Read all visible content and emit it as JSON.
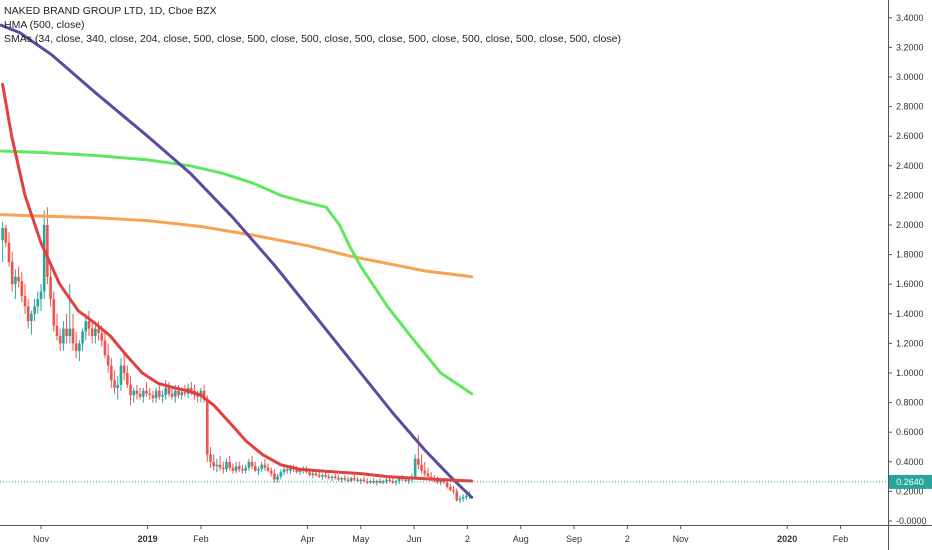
{
  "legend": {
    "title": "NAKED BRAND GROUP LTD, 1D, Cboe BZX",
    "hma": "HMA (500, close)",
    "smas": "SMAs (34, close, 340, close, 204, close, 500, close, 500, close, 500, close, 500, close, 500, close, 500, close, 500, close, 500, close)"
  },
  "price_label": "0.2640",
  "colors": {
    "up": "#26a69a",
    "down": "#ef5350",
    "sma34": "#e04040",
    "hma": "#5b4b9e",
    "sma_green": "#5ee85e",
    "sma_orange": "#f7a353",
    "price_line": "#26a69a"
  },
  "chart_data": {
    "type": "line",
    "title": "NAKED BRAND GROUP LTD, 1D, Cboe BZX",
    "xlabel": "",
    "ylabel": "",
    "ylim": [
      -0.05,
      3.45
    ],
    "y_ticks": [
      "3.4000",
      "3.2000",
      "3.0000",
      "2.8000",
      "2.6000",
      "2.4000",
      "2.2000",
      "2.0000",
      "1.8000",
      "1.6000",
      "1.4000",
      "1.2000",
      "1.0000",
      "0.8000",
      "0.6000",
      "0.4000",
      "0.2000",
      "-0.0000"
    ],
    "x_ticks": [
      {
        "label": "Nov",
        "x": 0.0,
        "bold": false
      },
      {
        "label": "2019",
        "x": 2.0,
        "bold": true
      },
      {
        "label": "Feb",
        "x": 3.0,
        "bold": false
      },
      {
        "label": "Apr",
        "x": 5.0,
        "bold": false
      },
      {
        "label": "May",
        "x": 6.0,
        "bold": false
      },
      {
        "label": "Jun",
        "x": 7.0,
        "bold": false
      },
      {
        "label": "2",
        "x": 8.0,
        "bold": false
      },
      {
        "label": "Aug",
        "x": 9.0,
        "bold": false
      },
      {
        "label": "Sep",
        "x": 10.0,
        "bold": false
      },
      {
        "label": "2",
        "x": 11.0,
        "bold": false
      },
      {
        "label": "Nov",
        "x": 12.0,
        "bold": false
      },
      {
        "label": "2020",
        "x": 14.0,
        "bold": true
      },
      {
        "label": "Feb",
        "x": 15.0,
        "bold": false
      }
    ],
    "last_price": 0.264,
    "series": [
      {
        "name": "HMA (500, close)",
        "type": "line",
        "points": [
          [
            -0.75,
            3.35
          ],
          [
            -0.4,
            3.3
          ],
          [
            0.2,
            3.15
          ],
          [
            1.0,
            2.9
          ],
          [
            2.0,
            2.6
          ],
          [
            2.8,
            2.35
          ],
          [
            3.6,
            2.05
          ],
          [
            4.4,
            1.72
          ],
          [
            5.2,
            1.36
          ],
          [
            6.0,
            1.0
          ],
          [
            6.6,
            0.73
          ],
          [
            7.2,
            0.48
          ],
          [
            7.6,
            0.33
          ],
          [
            7.85,
            0.24
          ],
          [
            8.08,
            0.16
          ]
        ]
      },
      {
        "name": "SMA 34",
        "type": "line",
        "points": [
          [
            -0.72,
            2.95
          ],
          [
            -0.55,
            2.6
          ],
          [
            -0.3,
            2.2
          ],
          [
            0.0,
            1.88
          ],
          [
            0.35,
            1.6
          ],
          [
            0.7,
            1.42
          ],
          [
            1.0,
            1.34
          ],
          [
            1.3,
            1.25
          ],
          [
            1.6,
            1.12
          ],
          [
            1.9,
            1.0
          ],
          [
            2.2,
            0.93
          ],
          [
            2.5,
            0.9
          ],
          [
            2.75,
            0.88
          ],
          [
            3.0,
            0.85
          ],
          [
            3.25,
            0.78
          ],
          [
            3.55,
            0.66
          ],
          [
            3.85,
            0.54
          ],
          [
            4.15,
            0.45
          ],
          [
            4.5,
            0.38
          ],
          [
            4.85,
            0.35
          ],
          [
            5.2,
            0.34
          ],
          [
            5.6,
            0.33
          ],
          [
            6.0,
            0.32
          ],
          [
            6.5,
            0.3
          ],
          [
            7.0,
            0.29
          ],
          [
            7.5,
            0.28
          ],
          [
            8.08,
            0.27
          ]
        ]
      },
      {
        "name": "SMA green",
        "type": "line",
        "points": [
          [
            -0.75,
            2.5
          ],
          [
            0.0,
            2.49
          ],
          [
            1.0,
            2.47
          ],
          [
            2.0,
            2.44
          ],
          [
            2.8,
            2.4
          ],
          [
            3.4,
            2.35
          ],
          [
            4.0,
            2.28
          ],
          [
            4.5,
            2.2
          ],
          [
            5.0,
            2.15
          ],
          [
            5.35,
            2.12
          ],
          [
            5.6,
            2.0
          ],
          [
            5.8,
            1.85
          ],
          [
            6.0,
            1.72
          ],
          [
            6.5,
            1.45
          ],
          [
            7.0,
            1.22
          ],
          [
            7.5,
            1.0
          ],
          [
            8.08,
            0.86
          ]
        ]
      },
      {
        "name": "SMA orange",
        "type": "line",
        "points": [
          [
            -0.75,
            2.07
          ],
          [
            0.0,
            2.06
          ],
          [
            1.0,
            2.05
          ],
          [
            2.0,
            2.03
          ],
          [
            3.0,
            1.99
          ],
          [
            4.0,
            1.93
          ],
          [
            5.0,
            1.86
          ],
          [
            5.8,
            1.79
          ],
          [
            6.5,
            1.74
          ],
          [
            7.2,
            1.69
          ],
          [
            8.08,
            1.65
          ]
        ]
      }
    ],
    "candles": [
      [
        -0.72,
        1.9,
        2.02,
        1.75,
        1.98
      ],
      [
        -0.66,
        1.98,
        2.0,
        1.85,
        1.88
      ],
      [
        -0.6,
        1.88,
        1.95,
        1.72,
        1.75
      ],
      [
        -0.54,
        1.75,
        1.82,
        1.55,
        1.6
      ],
      [
        -0.48,
        1.6,
        1.7,
        1.5,
        1.65
      ],
      [
        -0.42,
        1.65,
        1.72,
        1.58,
        1.62
      ],
      [
        -0.36,
        1.62,
        1.68,
        1.48,
        1.52
      ],
      [
        -0.3,
        1.52,
        1.6,
        1.4,
        1.45
      ],
      [
        -0.24,
        1.45,
        1.5,
        1.3,
        1.35
      ],
      [
        -0.18,
        1.35,
        1.42,
        1.26,
        1.4
      ],
      [
        -0.12,
        1.4,
        1.5,
        1.35,
        1.45
      ],
      [
        -0.06,
        1.45,
        1.55,
        1.4,
        1.5
      ],
      [
        0.0,
        1.5,
        1.6,
        1.42,
        1.55
      ],
      [
        0.06,
        1.55,
        2.1,
        1.5,
        2.0
      ],
      [
        0.12,
        2.0,
        2.12,
        1.6,
        1.65
      ],
      [
        0.18,
        1.65,
        1.75,
        1.45,
        1.5
      ],
      [
        0.24,
        1.5,
        1.55,
        1.28,
        1.32
      ],
      [
        0.3,
        1.32,
        1.4,
        1.22,
        1.25
      ],
      [
        0.36,
        1.25,
        1.3,
        1.15,
        1.2
      ],
      [
        0.42,
        1.2,
        1.35,
        1.15,
        1.3
      ],
      [
        0.48,
        1.3,
        1.4,
        1.2,
        1.25
      ],
      [
        0.54,
        1.25,
        1.6,
        1.2,
        1.3
      ],
      [
        0.6,
        1.3,
        1.4,
        1.15,
        1.2
      ],
      [
        0.66,
        1.2,
        1.28,
        1.1,
        1.15
      ],
      [
        0.72,
        1.15,
        1.22,
        1.08,
        1.2
      ],
      [
        0.78,
        1.2,
        1.3,
        1.15,
        1.28
      ],
      [
        0.84,
        1.28,
        1.4,
        1.22,
        1.35
      ],
      [
        0.9,
        1.35,
        1.42,
        1.25,
        1.3
      ],
      [
        0.96,
        1.3,
        1.36,
        1.2,
        1.25
      ],
      [
        1.02,
        1.25,
        1.32,
        1.2,
        1.3
      ],
      [
        1.08,
        1.3,
        1.35,
        1.22,
        1.27
      ],
      [
        1.14,
        1.27,
        1.32,
        1.18,
        1.22
      ],
      [
        1.2,
        1.22,
        1.28,
        1.1,
        1.12
      ],
      [
        1.26,
        1.12,
        1.2,
        1.0,
        1.05
      ],
      [
        1.32,
        1.05,
        1.1,
        0.9,
        0.95
      ],
      [
        1.38,
        0.95,
        1.02,
        0.86,
        0.9
      ],
      [
        1.44,
        0.9,
        0.98,
        0.82,
        0.92
      ],
      [
        1.5,
        0.92,
        1.1,
        0.88,
        1.05
      ],
      [
        1.56,
        1.05,
        1.15,
        0.95,
        1.0
      ],
      [
        1.62,
        1.0,
        1.05,
        0.9,
        0.92
      ],
      [
        1.68,
        0.92,
        0.98,
        0.78,
        0.85
      ],
      [
        1.74,
        0.85,
        0.9,
        0.8,
        0.88
      ],
      [
        1.8,
        0.88,
        0.92,
        0.82,
        0.86
      ],
      [
        1.86,
        0.86,
        0.9,
        0.82,
        0.84
      ],
      [
        1.92,
        0.84,
        0.9,
        0.8,
        0.88
      ],
      [
        1.98,
        0.88,
        0.94,
        0.84,
        0.86
      ],
      [
        2.04,
        0.86,
        0.9,
        0.82,
        0.85
      ],
      [
        2.1,
        0.85,
        0.88,
        0.8,
        0.83
      ],
      [
        2.16,
        0.83,
        0.9,
        0.8,
        0.88
      ],
      [
        2.22,
        0.88,
        0.92,
        0.82,
        0.84
      ],
      [
        2.28,
        0.84,
        0.88,
        0.8,
        0.85
      ],
      [
        2.34,
        0.85,
        0.95,
        0.82,
        0.9
      ],
      [
        2.4,
        0.9,
        0.94,
        0.84,
        0.86
      ],
      [
        2.46,
        0.86,
        0.9,
        0.82,
        0.84
      ],
      [
        2.52,
        0.84,
        0.92,
        0.8,
        0.88
      ],
      [
        2.58,
        0.88,
        0.92,
        0.83,
        0.85
      ],
      [
        2.64,
        0.85,
        0.9,
        0.82,
        0.87
      ],
      [
        2.7,
        0.87,
        0.92,
        0.84,
        0.86
      ],
      [
        2.76,
        0.86,
        0.93,
        0.83,
        0.9
      ],
      [
        2.82,
        0.9,
        0.94,
        0.85,
        0.88
      ],
      [
        2.88,
        0.88,
        0.92,
        0.82,
        0.85
      ],
      [
        2.94,
        0.85,
        0.88,
        0.8,
        0.84
      ],
      [
        3.0,
        0.84,
        0.9,
        0.8,
        0.88
      ],
      [
        3.06,
        0.88,
        0.92,
        0.8,
        0.82
      ],
      [
        3.12,
        0.82,
        0.85,
        0.4,
        0.45
      ],
      [
        3.18,
        0.45,
        0.5,
        0.36,
        0.4
      ],
      [
        3.24,
        0.4,
        0.45,
        0.34,
        0.37
      ],
      [
        3.3,
        0.37,
        0.42,
        0.33,
        0.38
      ],
      [
        3.36,
        0.38,
        0.44,
        0.34,
        0.36
      ],
      [
        3.42,
        0.36,
        0.4,
        0.32,
        0.35
      ],
      [
        3.48,
        0.35,
        0.42,
        0.33,
        0.4
      ],
      [
        3.54,
        0.4,
        0.44,
        0.34,
        0.36
      ],
      [
        3.6,
        0.36,
        0.39,
        0.32,
        0.34
      ],
      [
        3.66,
        0.34,
        0.4,
        0.32,
        0.37
      ],
      [
        3.72,
        0.37,
        0.4,
        0.33,
        0.35
      ],
      [
        3.78,
        0.35,
        0.38,
        0.32,
        0.34
      ],
      [
        3.84,
        0.34,
        0.38,
        0.32,
        0.36
      ],
      [
        3.9,
        0.36,
        0.42,
        0.34,
        0.4
      ],
      [
        3.96,
        0.4,
        0.44,
        0.35,
        0.37
      ],
      [
        4.02,
        0.37,
        0.4,
        0.33,
        0.34
      ],
      [
        4.08,
        0.34,
        0.37,
        0.31,
        0.35
      ],
      [
        4.14,
        0.35,
        0.4,
        0.33,
        0.38
      ],
      [
        4.2,
        0.38,
        0.42,
        0.34,
        0.36
      ],
      [
        4.26,
        0.36,
        0.39,
        0.33,
        0.34
      ],
      [
        4.32,
        0.34,
        0.36,
        0.3,
        0.32
      ],
      [
        4.38,
        0.32,
        0.35,
        0.26,
        0.28
      ],
      [
        4.44,
        0.28,
        0.32,
        0.26,
        0.3
      ],
      [
        4.5,
        0.3,
        0.35,
        0.28,
        0.33
      ],
      [
        4.56,
        0.33,
        0.38,
        0.31,
        0.35
      ],
      [
        4.62,
        0.35,
        0.37,
        0.32,
        0.34
      ],
      [
        4.68,
        0.34,
        0.38,
        0.32,
        0.36
      ],
      [
        4.74,
        0.36,
        0.38,
        0.33,
        0.35
      ],
      [
        4.8,
        0.35,
        0.37,
        0.32,
        0.33
      ],
      [
        4.86,
        0.33,
        0.36,
        0.31,
        0.34
      ],
      [
        4.92,
        0.34,
        0.37,
        0.32,
        0.35
      ],
      [
        4.98,
        0.35,
        0.37,
        0.32,
        0.33
      ],
      [
        5.04,
        0.33,
        0.35,
        0.3,
        0.31
      ],
      [
        5.1,
        0.31,
        0.34,
        0.29,
        0.32
      ],
      [
        5.16,
        0.32,
        0.34,
        0.3,
        0.31
      ],
      [
        5.22,
        0.31,
        0.33,
        0.29,
        0.3
      ],
      [
        5.28,
        0.3,
        0.32,
        0.28,
        0.31
      ],
      [
        5.34,
        0.31,
        0.33,
        0.29,
        0.3
      ],
      [
        5.4,
        0.3,
        0.32,
        0.28,
        0.29
      ],
      [
        5.46,
        0.29,
        0.31,
        0.27,
        0.3
      ],
      [
        5.52,
        0.3,
        0.32,
        0.28,
        0.29
      ],
      [
        5.58,
        0.29,
        0.31,
        0.27,
        0.28
      ],
      [
        5.64,
        0.28,
        0.3,
        0.26,
        0.29
      ],
      [
        5.7,
        0.29,
        0.31,
        0.27,
        0.28
      ],
      [
        5.76,
        0.28,
        0.3,
        0.26,
        0.27
      ],
      [
        5.82,
        0.27,
        0.3,
        0.26,
        0.29
      ],
      [
        5.88,
        0.29,
        0.31,
        0.27,
        0.28
      ],
      [
        5.94,
        0.28,
        0.3,
        0.26,
        0.27
      ],
      [
        6.0,
        0.27,
        0.29,
        0.25,
        0.28
      ],
      [
        6.06,
        0.28,
        0.3,
        0.26,
        0.27
      ],
      [
        6.12,
        0.27,
        0.29,
        0.25,
        0.26
      ],
      [
        6.18,
        0.26,
        0.28,
        0.25,
        0.27
      ],
      [
        6.24,
        0.27,
        0.29,
        0.25,
        0.26
      ],
      [
        6.3,
        0.26,
        0.28,
        0.24,
        0.27
      ],
      [
        6.36,
        0.27,
        0.29,
        0.25,
        0.26
      ],
      [
        6.42,
        0.26,
        0.28,
        0.25,
        0.27
      ],
      [
        6.48,
        0.27,
        0.29,
        0.25,
        0.28
      ],
      [
        6.54,
        0.28,
        0.3,
        0.26,
        0.27
      ],
      [
        6.6,
        0.27,
        0.29,
        0.25,
        0.26
      ],
      [
        6.66,
        0.26,
        0.28,
        0.24,
        0.27
      ],
      [
        6.72,
        0.27,
        0.3,
        0.25,
        0.29
      ],
      [
        6.78,
        0.29,
        0.31,
        0.27,
        0.28
      ],
      [
        6.84,
        0.28,
        0.3,
        0.26,
        0.27
      ],
      [
        6.9,
        0.27,
        0.29,
        0.25,
        0.28
      ],
      [
        6.96,
        0.28,
        0.32,
        0.26,
        0.3
      ],
      [
        7.02,
        0.3,
        0.45,
        0.28,
        0.42
      ],
      [
        7.08,
        0.42,
        0.58,
        0.35,
        0.38
      ],
      [
        7.14,
        0.38,
        0.45,
        0.32,
        0.34
      ],
      [
        7.2,
        0.34,
        0.4,
        0.3,
        0.32
      ],
      [
        7.26,
        0.32,
        0.36,
        0.28,
        0.3
      ],
      [
        7.32,
        0.3,
        0.33,
        0.27,
        0.29
      ],
      [
        7.38,
        0.29,
        0.31,
        0.26,
        0.28
      ],
      [
        7.44,
        0.28,
        0.3,
        0.25,
        0.26
      ],
      [
        7.5,
        0.26,
        0.28,
        0.24,
        0.27
      ],
      [
        7.56,
        0.27,
        0.29,
        0.25,
        0.26
      ],
      [
        7.62,
        0.26,
        0.28,
        0.22,
        0.23
      ],
      [
        7.68,
        0.23,
        0.25,
        0.2,
        0.21
      ],
      [
        7.74,
        0.21,
        0.24,
        0.18,
        0.2
      ],
      [
        7.8,
        0.2,
        0.22,
        0.13,
        0.14
      ],
      [
        7.86,
        0.14,
        0.17,
        0.12,
        0.15
      ],
      [
        7.92,
        0.15,
        0.18,
        0.13,
        0.16
      ],
      [
        7.98,
        0.16,
        0.19,
        0.14,
        0.17
      ],
      [
        8.04,
        0.17,
        0.2,
        0.15,
        0.18
      ]
    ]
  }
}
